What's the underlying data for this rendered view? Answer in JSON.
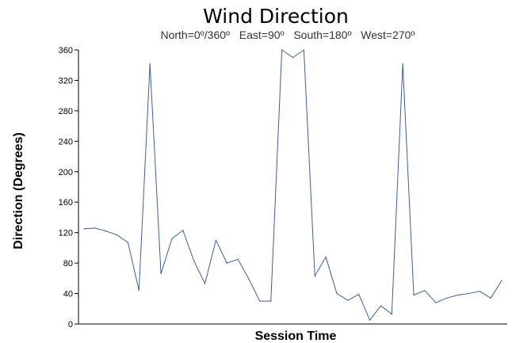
{
  "chart_data": {
    "type": "line",
    "title": "Wind Direction",
    "subtitle": "North=0º/360º   East=90º   South=180º   West=270º",
    "xlabel": "Session Time",
    "ylabel": "Direction (Degrees)",
    "ylim": [
      0,
      360
    ],
    "yticks": [
      0,
      40,
      80,
      120,
      160,
      200,
      240,
      280,
      320,
      360
    ],
    "grid": false,
    "series": [
      {
        "color": "#3e5e96",
        "values": [
          125,
          126,
          122,
          117,
          107,
          44,
          342,
          66,
          112,
          123,
          83,
          53,
          110,
          80,
          85,
          59,
          30,
          30,
          360,
          350,
          360,
          63,
          88,
          40,
          31,
          39,
          5,
          24,
          13,
          342,
          38,
          44,
          28,
          34,
          38,
          40,
          43,
          34,
          57
        ]
      }
    ]
  }
}
